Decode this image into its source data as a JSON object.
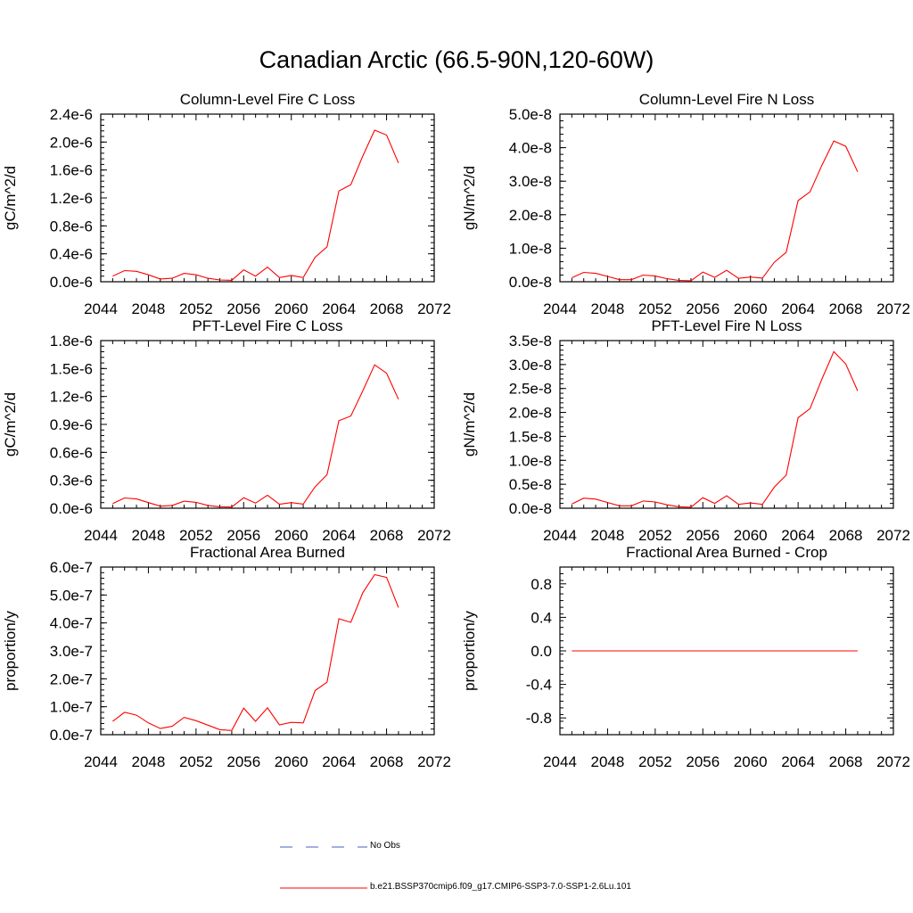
{
  "page_title": "Canadian Arctic (66.5-90N,120-60W)",
  "colors": {
    "model_line": "#ff0000",
    "obs_line": "#4a5fc0",
    "axis": "#000000"
  },
  "legend": {
    "obs_label": "No Obs",
    "model_label": "b.e21.BSSP370cmip6.f09_g17.CMIP6-SSP3-7.0-SSP1-2.6Lu.101"
  },
  "chart_data": [
    {
      "type": "line",
      "title": "Column-Level Fire C Loss",
      "ylabel": "gC/m^2/d",
      "xlim": [
        2044,
        2072
      ],
      "ylim": [
        0,
        2.4e-06
      ],
      "x_ticks": [
        "2044",
        "2048",
        "2052",
        "2056",
        "2060",
        "2064",
        "2068",
        "2072"
      ],
      "y_ticks": [
        {
          "value": 0,
          "label": "0.0e-6"
        },
        {
          "value": 4e-07,
          "label": "0.4e-6"
        },
        {
          "value": 8e-07,
          "label": "0.8e-6"
        },
        {
          "value": 1.2e-06,
          "label": "1.2e-6"
        },
        {
          "value": 1.6e-06,
          "label": "1.6e-6"
        },
        {
          "value": 2e-06,
          "label": "2.0e-6"
        },
        {
          "value": 2.4e-06,
          "label": "2.4e-6"
        }
      ],
      "x": [
        2045,
        2046,
        2047,
        2048,
        2049,
        2050,
        2051,
        2052,
        2053,
        2054,
        2055,
        2056,
        2057,
        2058,
        2059,
        2060,
        2061,
        2062,
        2063,
        2064,
        2065,
        2066,
        2067,
        2068,
        2069
      ],
      "series": [
        {
          "values": [
            8e-08,
            1.6e-07,
            1.5e-07,
            1e-07,
            4e-08,
            5e-08,
            1.2e-07,
            1e-07,
            5e-08,
            2.5e-08,
            2e-08,
            1.7e-07,
            8e-08,
            2.1e-07,
            6e-08,
            9e-08,
            6e-08,
            3.5e-07,
            5e-07,
            1.3e-06,
            1.39e-06,
            1.8e-06,
            2.17e-06,
            2.1e-06,
            1.7e-06
          ]
        }
      ]
    },
    {
      "type": "line",
      "title": "Column-Level Fire N Loss",
      "ylabel": "gN/m^2/d",
      "xlim": [
        2044,
        2072
      ],
      "ylim": [
        0,
        5e-08
      ],
      "x_ticks": [
        "2044",
        "2048",
        "2052",
        "2056",
        "2060",
        "2064",
        "2068",
        "2072"
      ],
      "y_ticks": [
        {
          "value": 0,
          "label": "0.0e-8"
        },
        {
          "value": 1e-08,
          "label": "1.0e-8"
        },
        {
          "value": 2e-08,
          "label": "2.0e-8"
        },
        {
          "value": 3e-08,
          "label": "3.0e-8"
        },
        {
          "value": 4e-08,
          "label": "4.0e-8"
        },
        {
          "value": 5e-08,
          "label": "5.0e-8"
        }
      ],
      "x": [
        2045,
        2046,
        2047,
        2048,
        2049,
        2050,
        2051,
        2052,
        2053,
        2054,
        2055,
        2056,
        2057,
        2058,
        2059,
        2060,
        2061,
        2062,
        2063,
        2064,
        2065,
        2066,
        2067,
        2068,
        2069
      ],
      "series": [
        {
          "values": [
            1.2e-09,
            2.8e-09,
            2.5e-09,
            1.6e-09,
            6e-10,
            6e-10,
            2e-09,
            1.7e-09,
            9e-10,
            4e-10,
            3e-10,
            2.9e-09,
            1.3e-09,
            3.4e-09,
            1e-09,
            1.4e-09,
            1.1e-09,
            5.8e-09,
            8.8e-09,
            2.42e-08,
            2.68e-08,
            3.48e-08,
            4.2e-08,
            4.04e-08,
            3.28e-08
          ]
        }
      ]
    },
    {
      "type": "line",
      "title": "PFT-Level Fire C Loss",
      "ylabel": "gC/m^2/d",
      "xlim": [
        2044,
        2072
      ],
      "ylim": [
        0,
        1.8e-06
      ],
      "x_ticks": [
        "2044",
        "2048",
        "2052",
        "2056",
        "2060",
        "2064",
        "2068",
        "2072"
      ],
      "y_ticks": [
        {
          "value": 0,
          "label": "0.0e-6"
        },
        {
          "value": 3e-07,
          "label": "0.3e-6"
        },
        {
          "value": 6e-07,
          "label": "0.6e-6"
        },
        {
          "value": 9e-07,
          "label": "0.9e-6"
        },
        {
          "value": 1.2e-06,
          "label": "1.2e-6"
        },
        {
          "value": 1.5e-06,
          "label": "1.5e-6"
        },
        {
          "value": 1.8e-06,
          "label": "1.8e-6"
        }
      ],
      "x": [
        2045,
        2046,
        2047,
        2048,
        2049,
        2050,
        2051,
        2052,
        2053,
        2054,
        2055,
        2056,
        2057,
        2058,
        2059,
        2060,
        2061,
        2062,
        2063,
        2064,
        2065,
        2066,
        2067,
        2068,
        2069
      ],
      "series": [
        {
          "values": [
            5e-08,
            1.1e-07,
            1e-07,
            6e-08,
            2.2e-08,
            3e-08,
            7.6e-08,
            6.3e-08,
            3e-08,
            1.5e-08,
            1.2e-08,
            1.12e-07,
            5.5e-08,
            1.4e-07,
            4.2e-08,
            6e-08,
            4.4e-08,
            2.3e-07,
            3.6e-07,
            9.4e-07,
            9.9e-07,
            1.26e-06,
            1.54e-06,
            1.45e-06,
            1.17e-06
          ]
        }
      ]
    },
    {
      "type": "line",
      "title": "PFT-Level Fire N Loss",
      "ylabel": "gN/m^2/d",
      "xlim": [
        2044,
        2072
      ],
      "ylim": [
        0,
        3.5e-08
      ],
      "x_ticks": [
        "2044",
        "2048",
        "2052",
        "2056",
        "2060",
        "2064",
        "2068",
        "2072"
      ],
      "y_ticks": [
        {
          "value": 0,
          "label": "0.0e-8"
        },
        {
          "value": 5e-09,
          "label": "0.5e-8"
        },
        {
          "value": 1e-08,
          "label": "1.0e-8"
        },
        {
          "value": 1.5e-08,
          "label": "1.5e-8"
        },
        {
          "value": 2e-08,
          "label": "2.0e-8"
        },
        {
          "value": 2.5e-08,
          "label": "2.5e-8"
        },
        {
          "value": 3e-08,
          "label": "3.0e-8"
        },
        {
          "value": 3.5e-08,
          "label": "3.5e-8"
        }
      ],
      "x": [
        2045,
        2046,
        2047,
        2048,
        2049,
        2050,
        2051,
        2052,
        2053,
        2054,
        2055,
        2056,
        2057,
        2058,
        2059,
        2060,
        2061,
        2062,
        2063,
        2064,
        2065,
        2066,
        2067,
        2068,
        2069
      ],
      "series": [
        {
          "values": [
            9e-10,
            2.1e-09,
            1.9e-09,
            1.2e-09,
            5e-10,
            5e-10,
            1.5e-09,
            1.3e-09,
            7e-10,
            3e-10,
            2e-10,
            2.2e-09,
            1e-09,
            2.6e-09,
            8e-10,
            1.1e-09,
            8e-10,
            4.4e-09,
            6.9e-09,
            1.89e-08,
            2.08e-08,
            2.7e-08,
            3.27e-08,
            3.01e-08,
            2.45e-08
          ]
        }
      ]
    },
    {
      "type": "line",
      "title": "Fractional Area Burned",
      "ylabel": "proportion/y",
      "xlim": [
        2044,
        2072
      ],
      "ylim": [
        0,
        6e-07
      ],
      "x_ticks": [
        "2044",
        "2048",
        "2052",
        "2056",
        "2060",
        "2064",
        "2068",
        "2072"
      ],
      "y_ticks": [
        {
          "value": 0,
          "label": "0.0e-7"
        },
        {
          "value": 1e-07,
          "label": "1.0e-7"
        },
        {
          "value": 2e-07,
          "label": "2.0e-7"
        },
        {
          "value": 3e-07,
          "label": "3.0e-7"
        },
        {
          "value": 4e-07,
          "label": "4.0e-7"
        },
        {
          "value": 5e-07,
          "label": "5.0e-7"
        },
        {
          "value": 6e-07,
          "label": "6.0e-7"
        }
      ],
      "x": [
        2045,
        2046,
        2047,
        2048,
        2049,
        2050,
        2051,
        2052,
        2053,
        2054,
        2055,
        2056,
        2057,
        2058,
        2059,
        2060,
        2061,
        2062,
        2063,
        2064,
        2065,
        2066,
        2067,
        2068,
        2069
      ],
      "series": [
        {
          "values": [
            4.8e-08,
            8e-08,
            7e-08,
            4.2e-08,
            2.2e-08,
            3e-08,
            6.2e-08,
            5e-08,
            3.4e-08,
            1.8e-08,
            1.5e-08,
            9.5e-08,
            4.8e-08,
            9.6e-08,
            3.5e-08,
            4.4e-08,
            4.2e-08,
            1.58e-07,
            1.88e-07,
            4.15e-07,
            4.02e-07,
            5.08e-07,
            5.73e-07,
            5.63e-07,
            4.55e-07
          ]
        }
      ]
    },
    {
      "type": "line",
      "title": "Fractional Area Burned - Crop",
      "ylabel": "proportion/y",
      "xlim": [
        2044,
        2072
      ],
      "ylim": [
        -1.0,
        1.0
      ],
      "x_ticks": [
        "2044",
        "2048",
        "2052",
        "2056",
        "2060",
        "2064",
        "2068",
        "2072"
      ],
      "y_ticks": [
        {
          "value": -0.8,
          "label": "-0.8"
        },
        {
          "value": -0.4,
          "label": "-0.4"
        },
        {
          "value": 0.0,
          "label": "0.0"
        },
        {
          "value": 0.4,
          "label": "0.4"
        },
        {
          "value": 0.8,
          "label": "0.8"
        }
      ],
      "x": [
        2045,
        2046,
        2047,
        2048,
        2049,
        2050,
        2051,
        2052,
        2053,
        2054,
        2055,
        2056,
        2057,
        2058,
        2059,
        2060,
        2061,
        2062,
        2063,
        2064,
        2065,
        2066,
        2067,
        2068,
        2069
      ],
      "series": [
        {
          "values": [
            0,
            0,
            0,
            0,
            0,
            0,
            0,
            0,
            0,
            0,
            0,
            0,
            0,
            0,
            0,
            0,
            0,
            0,
            0,
            0,
            0,
            0,
            0,
            0,
            0
          ]
        }
      ]
    }
  ]
}
